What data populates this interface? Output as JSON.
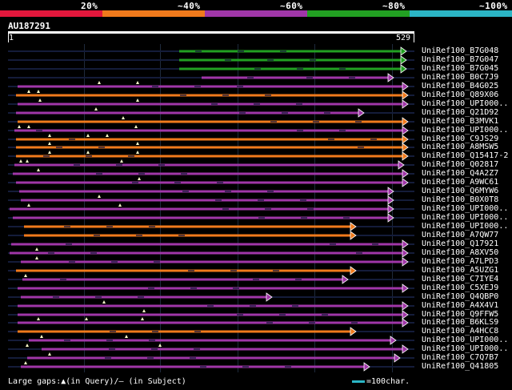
{
  "legend": {
    "items": [
      {
        "label": "20%",
        "color": "#e3173c"
      },
      {
        "label": "~40%",
        "color": "#f07a1c"
      },
      {
        "label": "~60%",
        "color": "#a036a8"
      },
      {
        "label": "~80%",
        "color": "#22a022"
      },
      {
        "label": "~100%",
        "color": "#2bb5c5"
      }
    ]
  },
  "query": {
    "id": "AU187291",
    "start": "1",
    "end": "529"
  },
  "hits": [
    {
      "label": "UniRef100_B7G048",
      "color": "#22a022",
      "marks": []
    },
    {
      "label": "UniRef100_B7G047",
      "color": "#22a022",
      "marks": []
    },
    {
      "label": "UniRef100_B7G045",
      "color": "#22a022",
      "marks": []
    },
    {
      "label": "UniRef100_B0C7J9",
      "color": "#a036a8",
      "marks": []
    },
    {
      "label": "UniRef100_B4G025",
      "color": "#a036a8",
      "marks": [
        1
      ]
    },
    {
      "label": "UniRef100_Q89X06",
      "color": "#f07a1c",
      "marks": [
        1
      ]
    },
    {
      "label": "UniRef100_UPI000..",
      "color": "#a036a8",
      "marks": [
        1
      ]
    },
    {
      "label": "UniRef100_Q21D92",
      "color": "#a036a8",
      "marks": [
        1
      ]
    },
    {
      "label": "UniRef100_B3MVK1",
      "color": "#f07a1c",
      "marks": [
        1
      ]
    },
    {
      "label": "UniRef100_UPI000..",
      "color": "#a036a8",
      "marks": [
        1
      ]
    },
    {
      "label": "UniRef100_C9JS29",
      "color": "#f07a1c",
      "marks": [
        1
      ]
    },
    {
      "label": "UniRef100_A8MSW5",
      "color": "#f07a1c",
      "marks": [
        1
      ]
    },
    {
      "label": "UniRef100_Q15417-2",
      "color": "#f07a1c",
      "marks": [
        1
      ]
    },
    {
      "label": "UniRef100_Q02817",
      "color": "#a036a8",
      "marks": [
        1
      ]
    },
    {
      "label": "UniRef100_Q4A2Z7",
      "color": "#a036a8",
      "marks": [
        1
      ]
    },
    {
      "label": "UniRef100_A9WC61",
      "color": "#a036a8",
      "marks": [
        1
      ]
    },
    {
      "label": "UniRef100_Q6MYW6",
      "color": "#a036a8",
      "marks": []
    },
    {
      "label": "UniRef100_B0X0T8",
      "color": "#a036a8",
      "marks": [
        1
      ]
    },
    {
      "label": "UniRef100_UPI000..",
      "color": "#a036a8",
      "marks": [
        1
      ]
    },
    {
      "label": "UniRef100_UPI000..",
      "color": "#a036a8",
      "marks": []
    },
    {
      "label": "UniRef100_UPI000..",
      "color": "#f07a1c",
      "marks": []
    },
    {
      "label": "UniRef100_A7QW77",
      "color": "#f07a1c",
      "marks": []
    },
    {
      "label": "UniRef100_Q17921",
      "color": "#a036a8",
      "marks": []
    },
    {
      "label": "UniRef100_A8XV50",
      "color": "#a036a8",
      "marks": [
        1
      ]
    },
    {
      "label": "UniRef100_A7LPD3",
      "color": "#a036a8",
      "marks": [
        1
      ]
    },
    {
      "label": "UniRef100_A5UZG1",
      "color": "#f07a1c",
      "marks": []
    },
    {
      "label": "UniRef100_C7IYE4",
      "color": "#a036a8",
      "marks": [
        1
      ]
    },
    {
      "label": "UniRef100_C5XEJ9",
      "color": "#a036a8",
      "marks": []
    },
    {
      "label": "UniRef100_Q4QBP0",
      "color": "#a036a8",
      "marks": []
    },
    {
      "label": "UniRef100_A4X4V1",
      "color": "#a036a8",
      "marks": [
        1
      ]
    },
    {
      "label": "UniRef100_Q9FFW5",
      "color": "#a036a8",
      "marks": [
        1
      ]
    },
    {
      "label": "UniRef100_B6KLS9",
      "color": "#a036a8",
      "marks": [
        1
      ]
    },
    {
      "label": "UniRef100_A4HCC8",
      "color": "#f07a1c",
      "marks": []
    },
    {
      "label": "UniRef100_UPI000..",
      "color": "#a036a8",
      "marks": [
        1
      ]
    },
    {
      "label": "UniRef100_UPI000..",
      "color": "#a036a8",
      "marks": [
        1
      ]
    },
    {
      "label": "UniRef100_C7Q7B7",
      "color": "#a036a8",
      "marks": [
        1
      ]
    },
    {
      "label": "UniRef100_Q41805",
      "color": "#a036a8",
      "marks": [
        1
      ]
    }
  ],
  "footer": {
    "text": "Large gaps:▲(in Query)/– (in Subject)",
    "scale": "=100char."
  }
}
